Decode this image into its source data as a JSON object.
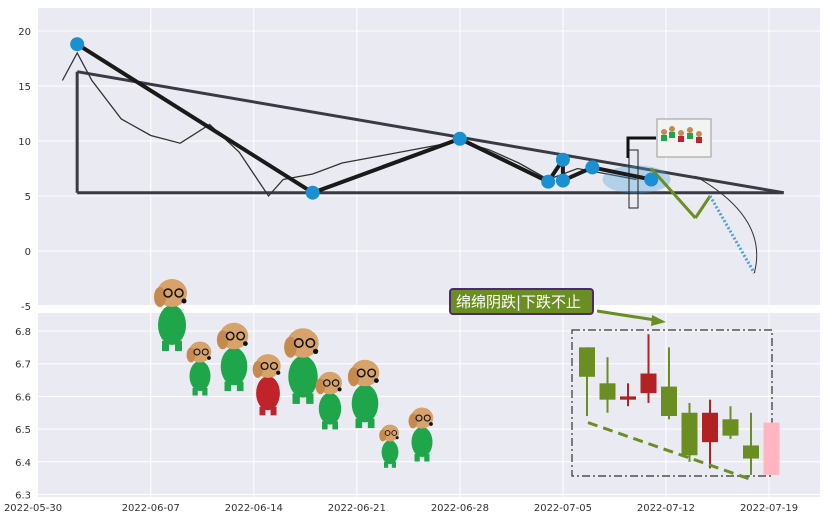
{
  "colors": {
    "plot_bg": "#eaeaf2",
    "grid": "#ffffff",
    "price_line": "#333333",
    "pattern_line": "#1a1a1a",
    "trend_line": "#3a3a44",
    "pivot_marker": "#1a8fd1",
    "projection_green": "#6b8e23",
    "projection_blue": "#4aa3d8",
    "candle_up": "#6b8e23",
    "candle_down": "#b22222",
    "candle_last": "#ffb6c1",
    "callout_bg": "#6b8e23",
    "callout_border": "#4b2a6e",
    "dash_box": "#333333"
  },
  "callout": {
    "text": "绵绵阴跌|下跌不止",
    "icon": "arrow-right-icon"
  },
  "decorations": {
    "sticker_icon": "dog-with-glasses-icon",
    "mini_icon": "tiny-dogs-sticker-icon"
  },
  "chart_data": [
    {
      "type": "line",
      "panel": "top",
      "y_ticks": [
        "20",
        "15",
        "10",
        "5",
        "0",
        "-5"
      ],
      "ylim": [
        -5,
        22
      ],
      "x_range": [
        "2022-05-30",
        "2022-07-22"
      ],
      "series": [
        {
          "values_dates": [
            "2022-06-01",
            "2022-06-02",
            "2022-06-03",
            "2022-06-05",
            "2022-06-07",
            "2022-06-09",
            "2022-06-11",
            "2022-06-13",
            "2022-06-15",
            "2022-06-16",
            "2022-06-18",
            "2022-06-20",
            "2022-06-22",
            "2022-06-24",
            "2022-06-26",
            "2022-06-28",
            "2022-06-30",
            "2022-07-02",
            "2022-07-04",
            "2022-07-06",
            "2022-07-08",
            "2022-07-10"
          ],
          "values": [
            15.5,
            18.0,
            15.5,
            12.0,
            10.5,
            9.8,
            11.5,
            9.0,
            5.0,
            6.5,
            7.0,
            8.0,
            8.5,
            9.0,
            9.5,
            10.0,
            9.2,
            8.0,
            6.5,
            7.5,
            7.0,
            6.5
          ]
        }
      ],
      "pivots": [
        {
          "date": "2022-06-02",
          "value": 18.8
        },
        {
          "date": "2022-06-18",
          "value": 5.3
        },
        {
          "date": "2022-06-28",
          "value": 10.2
        },
        {
          "date": "2022-07-04",
          "value": 6.3
        },
        {
          "date": "2022-07-05",
          "value": 8.3
        },
        {
          "date": "2022-07-05",
          "value": 6.4
        },
        {
          "date": "2022-07-07",
          "value": 7.6
        },
        {
          "date": "2022-07-11",
          "value": 6.5
        }
      ],
      "projection": [
        {
          "date": "2022-07-11",
          "value": 7.5
        },
        {
          "date": "2022-07-14",
          "value": 3.0
        },
        {
          "date": "2022-07-15",
          "value": 5.0
        },
        {
          "date": "2022-07-18",
          "value": -2.0
        }
      ]
    },
    {
      "type": "candlestick",
      "panel": "bottom",
      "y_ticks": [
        "6.8",
        "6.7",
        "6.6",
        "6.5",
        "6.4",
        "6.3"
      ],
      "ylim": [
        6.29,
        6.86
      ],
      "x_ticks": [
        "2022-05-30",
        "2022-06-07",
        "2022-06-14",
        "2022-06-21",
        "2022-06-28",
        "2022-07-05",
        "2022-07-12",
        "2022-07-19"
      ],
      "candles": [
        {
          "date": "2022-07-05",
          "open": 6.75,
          "close": 6.66,
          "high": 6.75,
          "low": 6.54
        },
        {
          "date": "2022-07-06",
          "open": 6.64,
          "close": 6.59,
          "high": 6.72,
          "low": 6.55
        },
        {
          "date": "2022-07-07",
          "open": 6.59,
          "close": 6.6,
          "high": 6.64,
          "low": 6.57
        },
        {
          "date": "2022-07-08",
          "open": 6.61,
          "close": 6.67,
          "high": 6.79,
          "low": 6.58
        },
        {
          "date": "2022-07-11",
          "open": 6.63,
          "close": 6.54,
          "high": 6.75,
          "low": 6.53
        },
        {
          "date": "2022-07-12",
          "open": 6.55,
          "close": 6.42,
          "high": 6.58,
          "low": 6.4
        },
        {
          "date": "2022-07-13",
          "open": 6.46,
          "close": 6.55,
          "high": 6.59,
          "low": 6.38
        },
        {
          "date": "2022-07-14",
          "open": 6.53,
          "close": 6.48,
          "high": 6.57,
          "low": 6.47
        },
        {
          "date": "2022-07-15",
          "open": 6.45,
          "close": 6.41,
          "high": 6.55,
          "low": 6.36
        },
        {
          "date": "2022-07-18",
          "open": 6.36,
          "close": 6.52,
          "high": 6.52,
          "low": 6.36
        }
      ]
    }
  ]
}
